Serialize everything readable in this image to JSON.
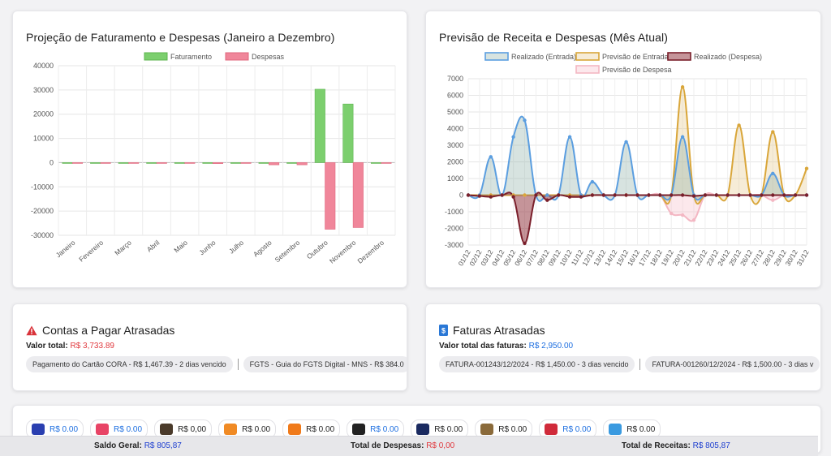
{
  "chart1": {
    "title": "Projeção de Faturamento e Despesas (Janeiro a Dezembro)",
    "chart_data": {
      "type": "bar",
      "title": "Projeção de Faturamento e Despesas (Janeiro a Dezembro)",
      "categories": [
        "Janeiro",
        "Fevereiro",
        "Março",
        "Abril",
        "Maio",
        "Junho",
        "Julho",
        "Agosto",
        "Setembro",
        "Outubro",
        "Novembro",
        "Dezembro"
      ],
      "series": [
        {
          "name": "Faturamento",
          "color": "#7ccf6e",
          "border": "#5cb44e",
          "values": [
            0,
            0,
            0,
            0,
            0,
            0,
            0,
            0,
            0,
            30300,
            24200,
            0
          ]
        },
        {
          "name": "Despesas",
          "color": "#f0869a",
          "border": "#e0677d",
          "values": [
            0,
            0,
            0,
            0,
            0,
            -400,
            0,
            -900,
            -900,
            -27500,
            -26800,
            0
          ]
        }
      ],
      "ylim": [
        -30000,
        40000
      ],
      "yticks": [
        40000,
        30000,
        20000,
        10000,
        0,
        -10000,
        -20000,
        -30000
      ],
      "legend": "top",
      "grid": true
    }
  },
  "chart2": {
    "title": "Previsão de Receita e Despesas (Mês Atual)",
    "chart_data": {
      "type": "area",
      "title": "Previsão de Receita e Despesas (Mês Atual)",
      "x": [
        "01/12",
        "02/12",
        "03/12",
        "04/12",
        "05/12",
        "06/12",
        "07/12",
        "08/12",
        "09/12",
        "10/12",
        "11/12",
        "12/12",
        "13/12",
        "14/12",
        "15/12",
        "16/12",
        "17/12",
        "18/12",
        "19/12",
        "20/12",
        "21/12",
        "22/12",
        "23/12",
        "24/12",
        "25/12",
        "26/12",
        "27/12",
        "28/12",
        "29/12",
        "30/12",
        "31/12"
      ],
      "series": [
        {
          "name": "Realizado (Entrada)",
          "color": "#5b9ee0",
          "fill": "rgba(140,175,165,0.35)",
          "values": [
            0,
            0,
            2300,
            0,
            3500,
            4500,
            0,
            0,
            0,
            3500,
            0,
            800,
            0,
            0,
            3200,
            0,
            0,
            0,
            0,
            3500,
            0,
            0,
            0,
            0,
            0,
            0,
            0,
            1300,
            0,
            0,
            0
          ]
        },
        {
          "name": "Previsão de Entrada",
          "color": "#d9a63a",
          "fill": "rgba(230,200,140,0.35)",
          "values": [
            0,
            0,
            0,
            0,
            0,
            0,
            0,
            0,
            0,
            0,
            0,
            0,
            0,
            0,
            0,
            0,
            0,
            0,
            0,
            6500,
            0,
            0,
            0,
            0,
            4200,
            0,
            0,
            3800,
            0,
            0,
            1600
          ]
        },
        {
          "name": "Realizado (Despesa)",
          "color": "#7a1f2b",
          "fill": "rgba(150,60,70,0.55)",
          "values": [
            0,
            -50,
            -100,
            0,
            -100,
            -2900,
            0,
            -300,
            0,
            -100,
            -100,
            0,
            0,
            0,
            0,
            0,
            0,
            0,
            0,
            0,
            -50,
            0,
            0,
            0,
            0,
            0,
            0,
            0,
            0,
            0,
            0
          ]
        },
        {
          "name": "Previsão de Despesa",
          "color": "#f3b7c3",
          "fill": "rgba(245,190,200,0.35)",
          "values": [
            0,
            0,
            0,
            0,
            0,
            0,
            0,
            0,
            0,
            0,
            0,
            0,
            0,
            0,
            0,
            0,
            0,
            0,
            -1100,
            -1200,
            -1500,
            0,
            0,
            0,
            0,
            0,
            0,
            -300,
            0,
            0,
            0
          ]
        }
      ],
      "ylim": [
        -3000,
        7000
      ],
      "yticks": [
        7000,
        6000,
        5000,
        4000,
        3000,
        2000,
        1000,
        0,
        -1000,
        -2000,
        -3000
      ],
      "legend": "top",
      "grid": true
    }
  },
  "contas": {
    "title": "Contas a Pagar Atrasadas",
    "valor_label": "Valor total:",
    "valor": "R$ 3,733.89",
    "items": [
      "Pagamento do Cartão CORA - R$ 1,467.39 - 2 dias vencido",
      "FGTS - Guia do FGTS Digital - MNS - R$ 384.0"
    ]
  },
  "faturas": {
    "title": "Faturas Atrasadas",
    "valor_label": "Valor total das faturas:",
    "valor": "R$ 2,950.00",
    "items": [
      "FATURA-001243/12/2024 - R$ 1,450.00 - 3 dias vencido",
      "FATURA-001260/12/2024 - R$ 1,500.00 - 3 dias v"
    ]
  },
  "balances": [
    {
      "logo": "bank-logo-icon",
      "color": "#2a3fb0",
      "amount": "R$ 0.00",
      "tone": "blue"
    },
    {
      "logo": "bank-logo-icon",
      "color": "#e84466",
      "amount": "R$ 0.00",
      "tone": "blue"
    },
    {
      "logo": "wallet-icon",
      "color": "#4a3a2a",
      "amount": "R$ 0,00",
      "tone": "dark"
    },
    {
      "logo": "bank-logo-icon",
      "color": "#f08a24",
      "amount": "R$ 0.00",
      "tone": "dark"
    },
    {
      "logo": "bank-logo-icon",
      "color": "#f07a1a",
      "amount": "R$ 0.00",
      "tone": "dark"
    },
    {
      "logo": "bank-logo-icon",
      "color": "#222222",
      "amount": "R$ 0.00",
      "tone": "blue"
    },
    {
      "logo": "bank-logo-icon",
      "color": "#1a2a60",
      "amount": "R$ 0.00",
      "tone": "dark"
    },
    {
      "logo": "wallet-icon",
      "color": "#8a6a3a",
      "amount": "R$ 0.00",
      "tone": "dark"
    },
    {
      "logo": "bank-logo-icon",
      "color": "#d02a3a",
      "amount": "R$ 0.00",
      "tone": "blue"
    },
    {
      "logo": "bank-logo-icon",
      "color": "#3a9ae0",
      "amount": "R$ 0.00",
      "tone": "dark"
    }
  ],
  "footer": {
    "saldo_label": "Saldo Geral:",
    "saldo": "R$ 805,87",
    "despesas_label": "Total de Despesas:",
    "despesas": "R$ 0,00",
    "receitas_label": "Total de Receitas:",
    "receitas": "R$ 805,87"
  }
}
